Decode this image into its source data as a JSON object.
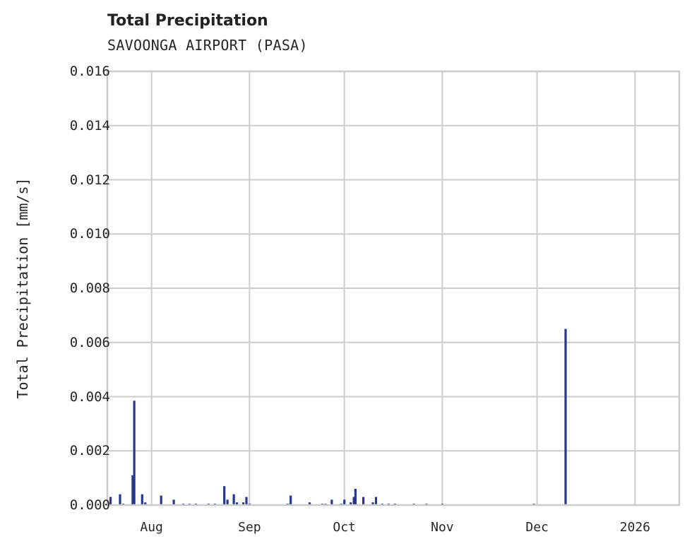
{
  "chart_data": {
    "type": "bar",
    "title": "Total Precipitation",
    "subtitle": "SAVOONGA AIRPORT (PASA)",
    "xlabel": "",
    "ylabel": "Total Precipitation [mm/s]",
    "ylim": [
      0,
      0.016
    ],
    "yticks": [
      "0.000",
      "0.002",
      "0.004",
      "0.006",
      "0.008",
      "0.010",
      "0.012",
      "0.014",
      "0.016"
    ],
    "xticks": [
      "Aug",
      "Sep",
      "Oct",
      "Nov",
      "Dec",
      "2026"
    ],
    "grid": true,
    "legend": null,
    "series_color": "#27378f",
    "x_range": [
      "2025-07-18",
      "2026-01-15"
    ],
    "series": [
      {
        "name": "Total Precipitation",
        "points": [
          {
            "date": "2025-07-19",
            "value": 0.0003
          },
          {
            "date": "2025-07-22",
            "value": 0.0004
          },
          {
            "date": "2025-07-23",
            "value": 5e-05
          },
          {
            "date": "2025-07-26",
            "value": 0.0011
          },
          {
            "date": "2025-07-26T12",
            "value": 0.00385
          },
          {
            "date": "2025-07-29",
            "value": 0.0004
          },
          {
            "date": "2025-07-30",
            "value": 0.0001
          },
          {
            "date": "2025-08-04",
            "value": 0.00035
          },
          {
            "date": "2025-08-08",
            "value": 0.0002
          },
          {
            "date": "2025-08-11",
            "value": 5e-05
          },
          {
            "date": "2025-08-13",
            "value": 5e-05
          },
          {
            "date": "2025-08-15",
            "value": 5e-05
          },
          {
            "date": "2025-08-19",
            "value": 5e-05
          },
          {
            "date": "2025-08-21",
            "value": 5e-05
          },
          {
            "date": "2025-08-24",
            "value": 0.0007
          },
          {
            "date": "2025-08-25",
            "value": 0.0002
          },
          {
            "date": "2025-08-27",
            "value": 0.0004
          },
          {
            "date": "2025-08-28",
            "value": 0.0001
          },
          {
            "date": "2025-08-30",
            "value": 0.0001
          },
          {
            "date": "2025-08-31",
            "value": 0.0003
          },
          {
            "date": "2025-09-01",
            "value": 5e-05
          },
          {
            "date": "2025-09-13",
            "value": 5e-05
          },
          {
            "date": "2025-09-14",
            "value": 0.00035
          },
          {
            "date": "2025-09-20",
            "value": 0.0001
          },
          {
            "date": "2025-09-24",
            "value": 5e-05
          },
          {
            "date": "2025-09-25",
            "value": 5e-05
          },
          {
            "date": "2025-09-27",
            "value": 0.0002
          },
          {
            "date": "2025-09-30",
            "value": 5e-05
          },
          {
            "date": "2025-10-01",
            "value": 0.0002
          },
          {
            "date": "2025-10-03",
            "value": 0.0001
          },
          {
            "date": "2025-10-04",
            "value": 0.0003
          },
          {
            "date": "2025-10-04T12",
            "value": 0.0006
          },
          {
            "date": "2025-10-07",
            "value": 0.0003
          },
          {
            "date": "2025-10-10",
            "value": 0.0001
          },
          {
            "date": "2025-10-11",
            "value": 0.0003
          },
          {
            "date": "2025-10-13",
            "value": 5e-05
          },
          {
            "date": "2025-10-15",
            "value": 5e-05
          },
          {
            "date": "2025-10-17",
            "value": 5e-05
          },
          {
            "date": "2025-10-23",
            "value": 5e-05
          },
          {
            "date": "2025-10-27",
            "value": 5e-05
          },
          {
            "date": "2025-11-01",
            "value": 5e-05
          },
          {
            "date": "2025-11-30",
            "value": 5e-05
          },
          {
            "date": "2025-12-10",
            "value": 0.0065
          }
        ]
      }
    ]
  }
}
